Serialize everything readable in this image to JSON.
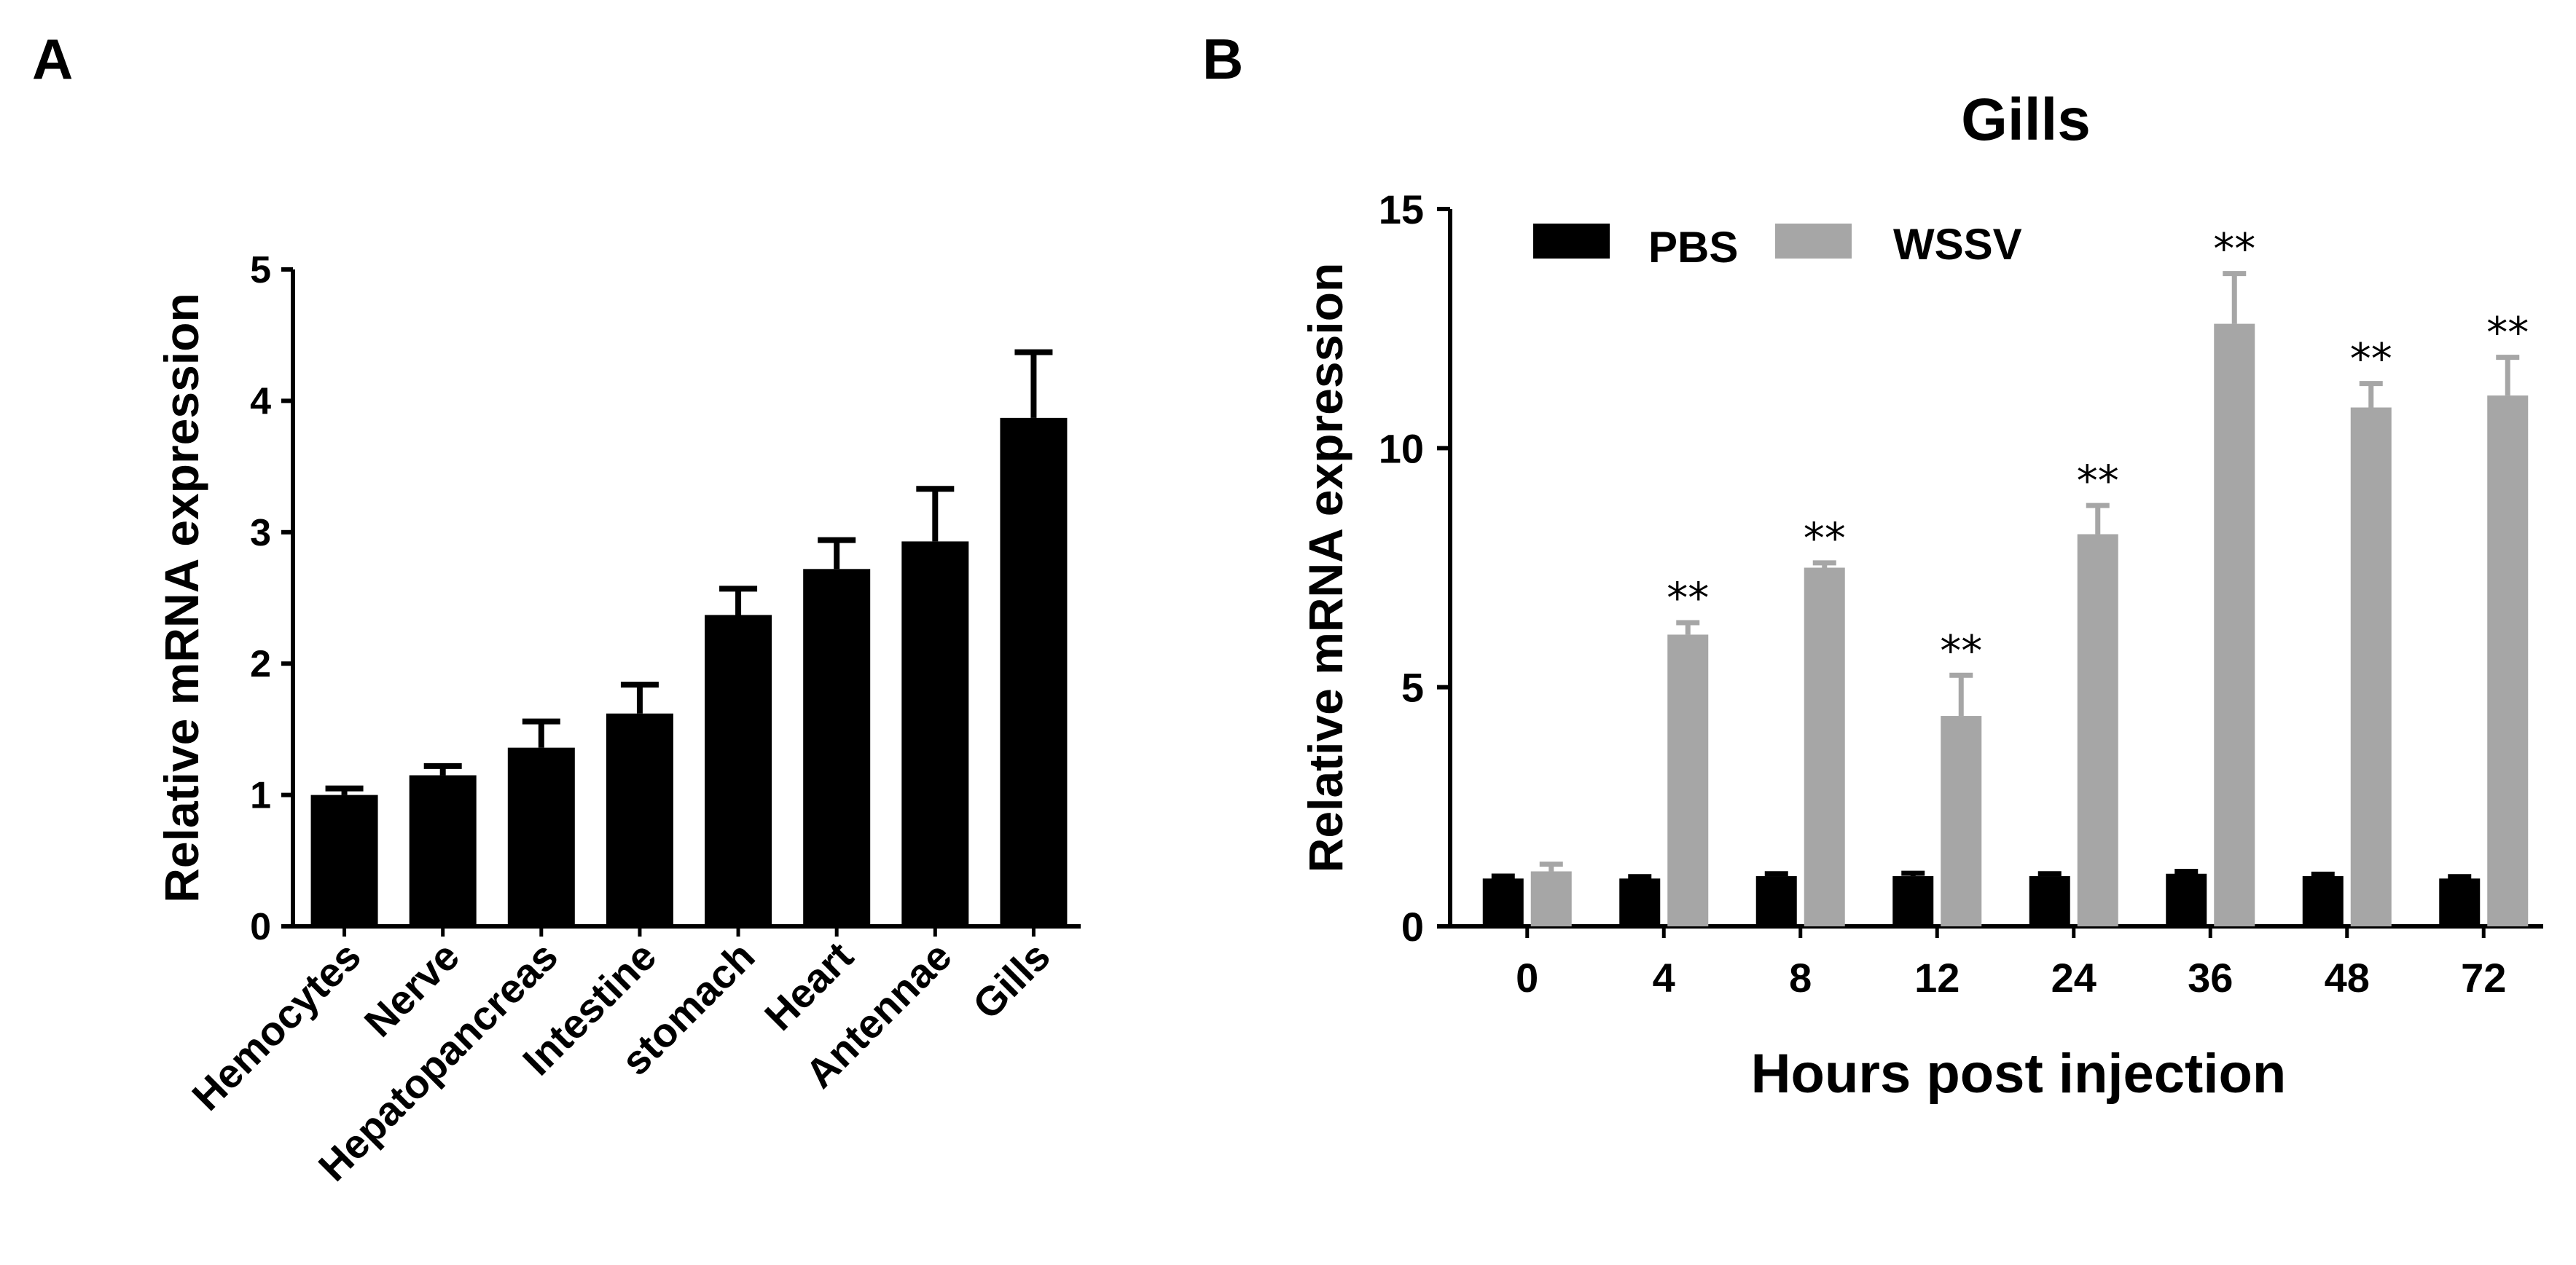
{
  "chart_data": [
    {
      "panel": "A",
      "type": "bar",
      "title": "",
      "xlabel": "",
      "ylabel": "Relative mRNA expression",
      "ylim": [
        0,
        5
      ],
      "yticks": [
        "0",
        "1",
        "2",
        "3",
        "4",
        "5"
      ],
      "categories": [
        "Hemocytes",
        "Nerve",
        "Hepatopancreas",
        "Intestine",
        "stomach",
        "Heart",
        "Antennae",
        "Gills"
      ],
      "values": [
        1.0,
        1.15,
        1.36,
        1.62,
        2.37,
        2.72,
        2.93,
        3.87
      ],
      "errors": [
        0.05,
        0.07,
        0.2,
        0.22,
        0.2,
        0.22,
        0.4,
        0.5
      ],
      "colors": {
        "bar": "#000000"
      }
    },
    {
      "panel": "B",
      "type": "bar",
      "title": "Gills",
      "xlabel": "Hours post injection",
      "ylabel": "Relative mRNA expression",
      "ylim": [
        0,
        15
      ],
      "yticks": [
        "0",
        "5",
        "10",
        "15"
      ],
      "categories": [
        "0",
        "4",
        "8",
        "12",
        "24",
        "36",
        "48",
        "72"
      ],
      "series": [
        {
          "name": "PBS",
          "color": "#000000",
          "values": [
            1.0,
            1.0,
            1.05,
            1.05,
            1.05,
            1.1,
            1.05,
            1.0
          ],
          "errors": [
            0.05,
            0.04,
            0.05,
            0.06,
            0.05,
            0.05,
            0.04,
            0.04
          ]
        },
        {
          "name": "WSSV",
          "color": "#a6a6a6",
          "values": [
            1.15,
            6.1,
            7.5,
            4.4,
            8.2,
            12.6,
            10.85,
            11.1
          ],
          "errors": [
            0.15,
            0.25,
            0.1,
            0.85,
            0.6,
            1.05,
            0.5,
            0.8
          ]
        }
      ],
      "annotations": [
        "",
        "**",
        "**",
        "**",
        "**",
        "**",
        "**",
        "**"
      ],
      "legend_position": "top-left"
    }
  ],
  "panels": {
    "a_letter": "A",
    "b_letter": "B"
  }
}
